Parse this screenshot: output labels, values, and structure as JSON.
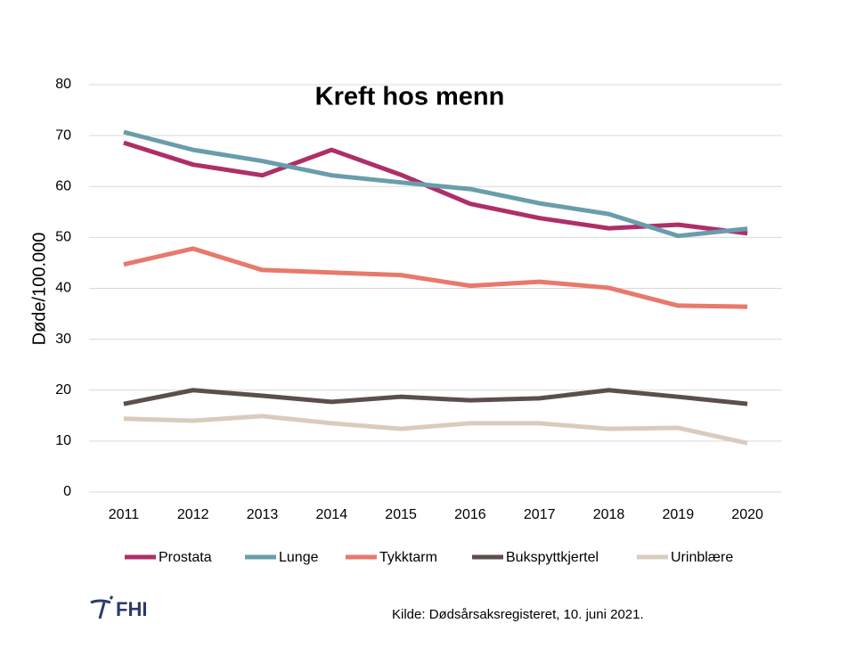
{
  "logo": "FHI",
  "chart_data": {
    "type": "line",
    "title": "Kreft hos menn",
    "y_label": "Døde/100.000",
    "source": "Kilde: Dødsårsaksregisteret, 10. juni 2021.",
    "categories": [
      "2011",
      "2012",
      "2013",
      "2014",
      "2015",
      "2016",
      "2017",
      "2018",
      "2019",
      "2020"
    ],
    "series": [
      {
        "name": "Prostata",
        "color": "#ae2f68",
        "values": [
          68.6,
          64.3,
          62.2,
          67.2,
          62.3,
          56.6,
          53.8,
          51.8,
          52.5,
          50.8
        ]
      },
      {
        "name": "Lunge",
        "color": "#6a9dac",
        "values": [
          70.7,
          67.2,
          65.0,
          62.2,
          60.8,
          59.5,
          56.7,
          54.6,
          50.3,
          51.7
        ]
      },
      {
        "name": "Tykktarm",
        "color": "#e8796b",
        "values": [
          44.7,
          47.8,
          43.6,
          43.1,
          42.6,
          40.5,
          41.3,
          40.1,
          36.6,
          36.4
        ]
      },
      {
        "name": "Bukspyttkjertel",
        "color": "#5b4f4b",
        "values": [
          17.3,
          20.0,
          18.9,
          17.7,
          18.7,
          18.0,
          18.4,
          20.0,
          18.7,
          17.3
        ]
      },
      {
        "name": "Urinblære",
        "color": "#d9ccbe",
        "values": [
          14.4,
          14.0,
          14.9,
          13.5,
          12.4,
          13.5,
          13.5,
          12.4,
          12.6,
          9.6
        ]
      }
    ],
    "ylim": [
      0,
      80
    ],
    "yticks": [
      0,
      10,
      20,
      30,
      40,
      50,
      60,
      70,
      80
    ],
    "grid": true,
    "legend": "bottom"
  }
}
